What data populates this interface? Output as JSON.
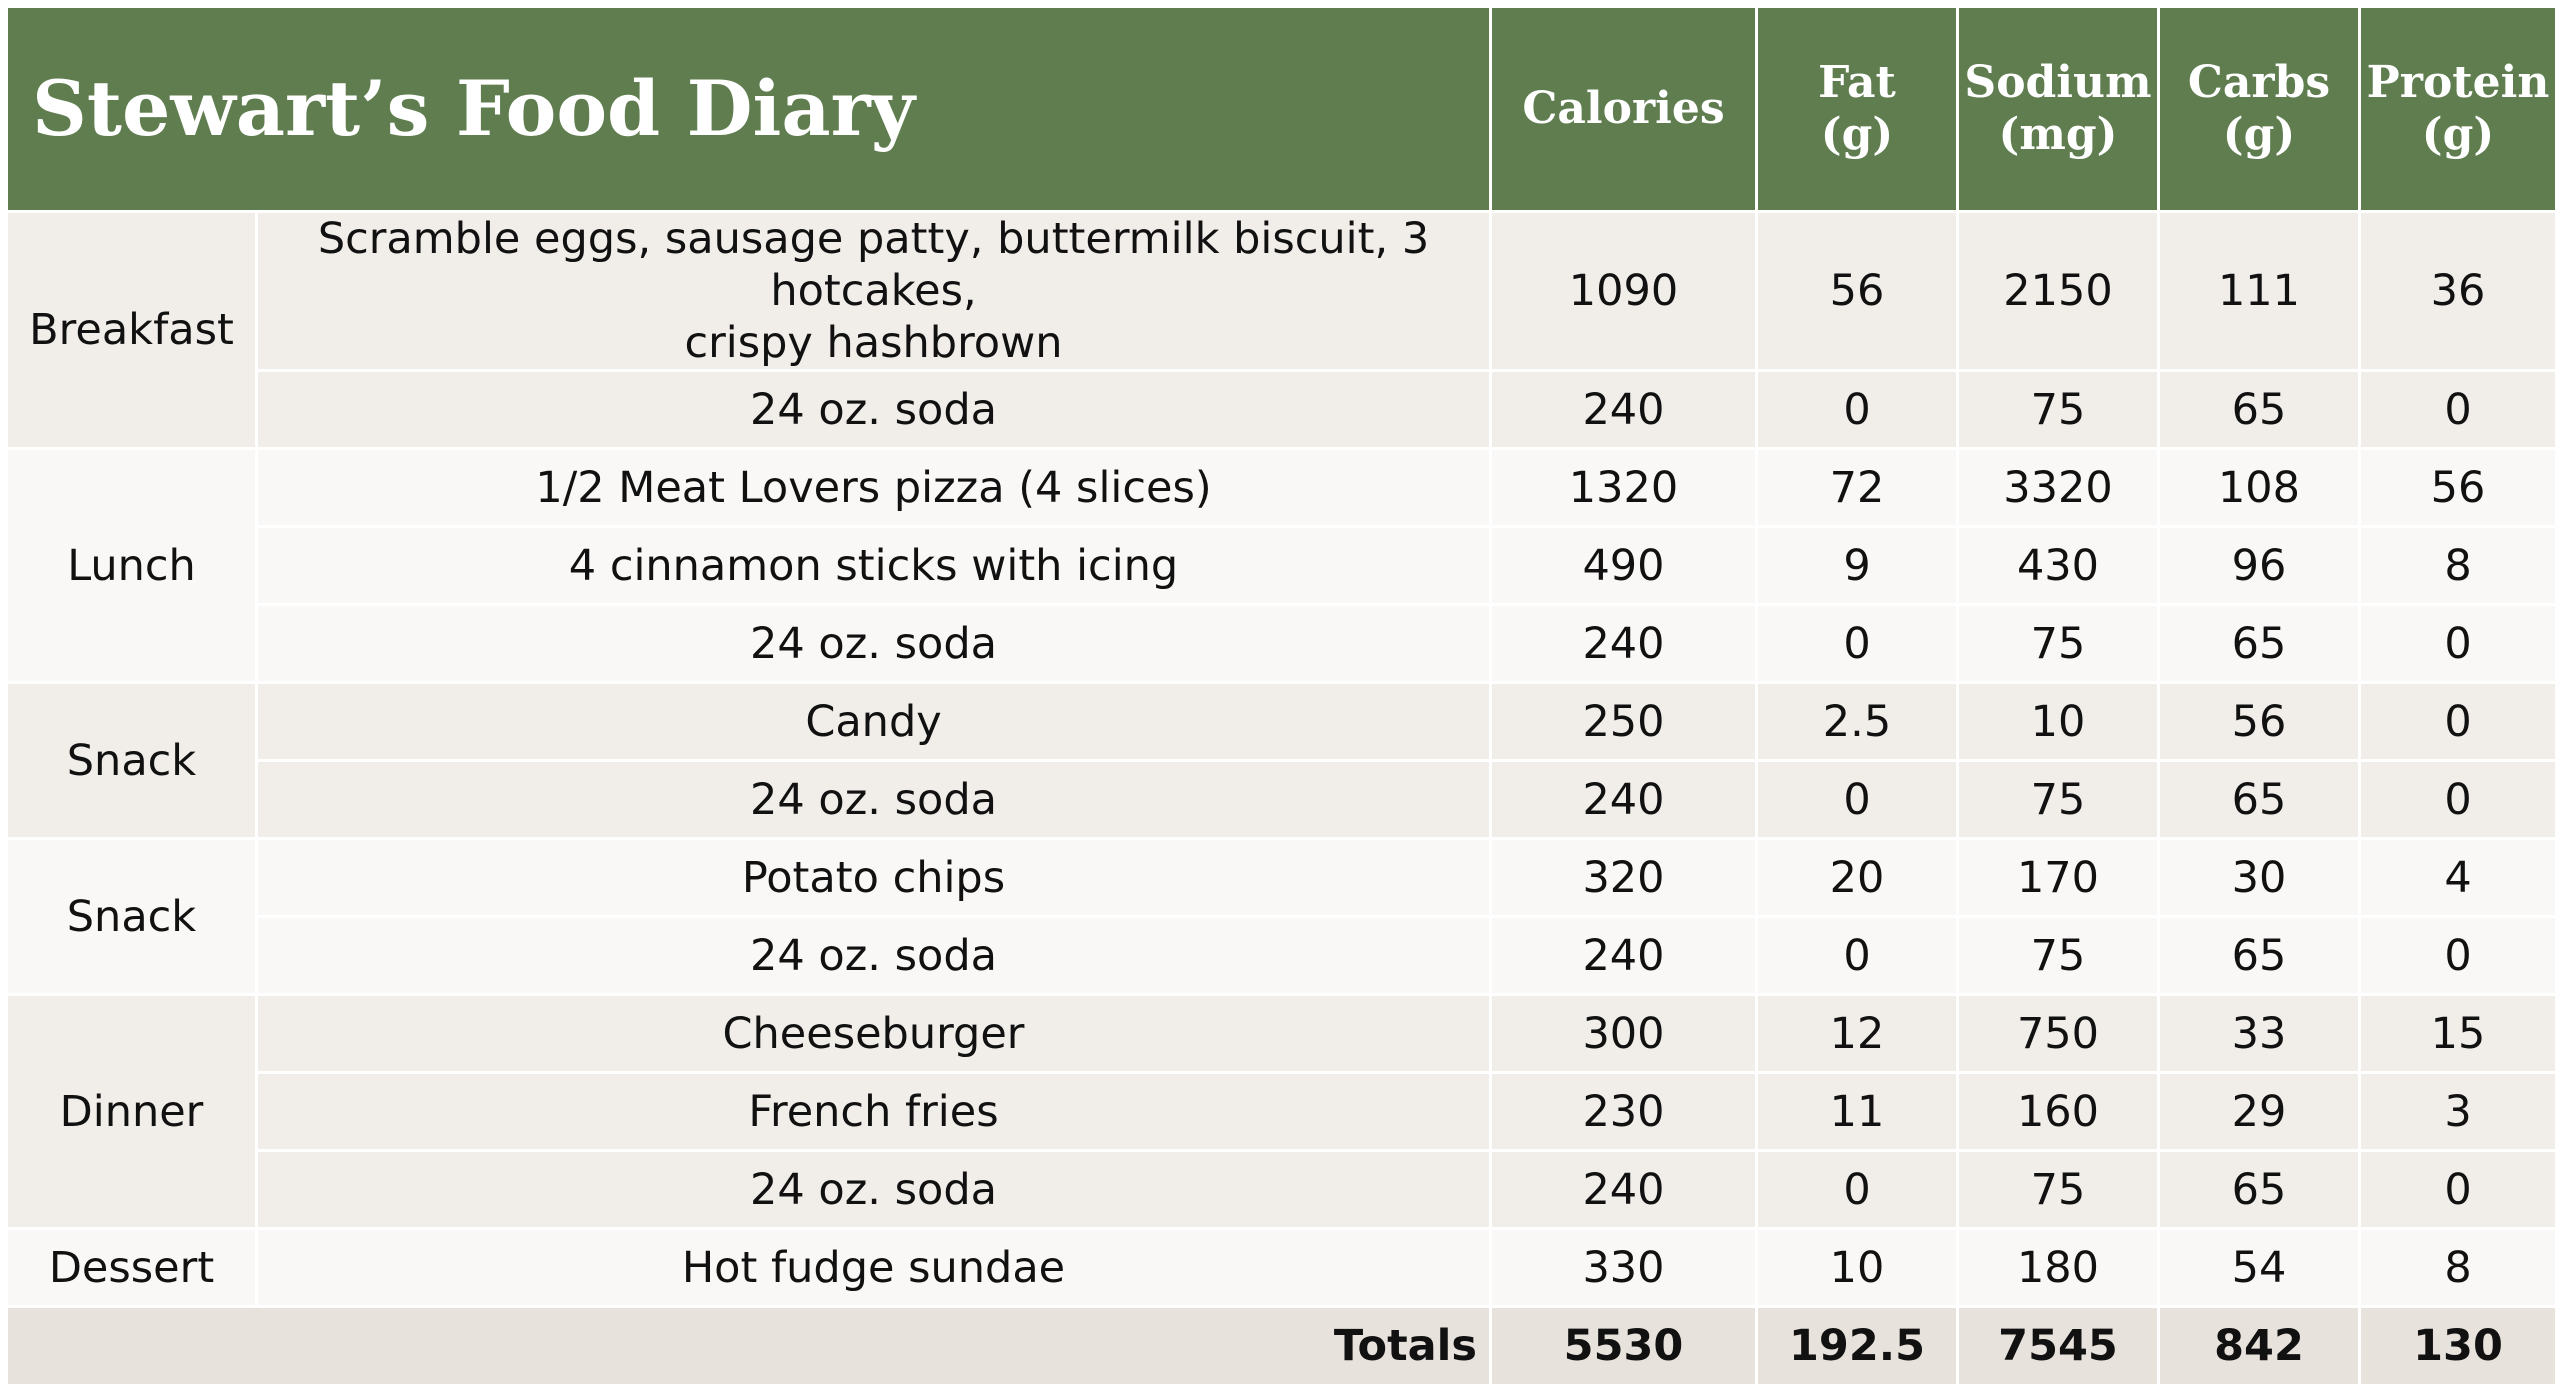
{
  "title": "Stewart’s Food Diary",
  "columns": {
    "calories": "Calories",
    "fat": [
      "Fat",
      "(g)"
    ],
    "sodium": [
      "Sodium",
      "(mg)"
    ],
    "carbs": [
      "Carbs",
      "(g)"
    ],
    "protein": [
      "Protein",
      "(g)"
    ]
  },
  "meals": [
    {
      "name": "Breakfast",
      "items": [
        {
          "item": [
            "Scramble eggs, sausage patty, buttermilk biscuit, 3 hotcakes,",
            "crispy hashbrown"
          ],
          "calories": "1090",
          "fat": "56",
          "sodium": "2150",
          "carbs": "111",
          "protein": "36"
        },
        {
          "item": [
            "24 oz. soda"
          ],
          "calories": "240",
          "fat": "0",
          "sodium": "75",
          "carbs": "65",
          "protein": "0"
        }
      ]
    },
    {
      "name": "Lunch",
      "items": [
        {
          "item": [
            "1/2 Meat Lovers pizza (4 slices)"
          ],
          "calories": "1320",
          "fat": "72",
          "sodium": "3320",
          "carbs": "108",
          "protein": "56"
        },
        {
          "item": [
            "4 cinnamon sticks with icing"
          ],
          "calories": "490",
          "fat": "9",
          "sodium": "430",
          "carbs": "96",
          "protein": "8"
        },
        {
          "item": [
            "24 oz. soda"
          ],
          "calories": "240",
          "fat": "0",
          "sodium": "75",
          "carbs": "65",
          "protein": "0"
        }
      ]
    },
    {
      "name": "Snack",
      "items": [
        {
          "item": [
            "Candy"
          ],
          "calories": "250",
          "fat": "2.5",
          "sodium": "10",
          "carbs": "56",
          "protein": "0"
        },
        {
          "item": [
            "24 oz. soda"
          ],
          "calories": "240",
          "fat": "0",
          "sodium": "75",
          "carbs": "65",
          "protein": "0"
        }
      ]
    },
    {
      "name": "Snack",
      "items": [
        {
          "item": [
            "Potato chips"
          ],
          "calories": "320",
          "fat": "20",
          "sodium": "170",
          "carbs": "30",
          "protein": "4"
        },
        {
          "item": [
            "24 oz. soda"
          ],
          "calories": "240",
          "fat": "0",
          "sodium": "75",
          "carbs": "65",
          "protein": "0"
        }
      ]
    },
    {
      "name": "Dinner",
      "items": [
        {
          "item": [
            "Cheeseburger"
          ],
          "calories": "300",
          "fat": "12",
          "sodium": "750",
          "carbs": "33",
          "protein": "15"
        },
        {
          "item": [
            "French fries"
          ],
          "calories": "230",
          "fat": "11",
          "sodium": "160",
          "carbs": "29",
          "protein": "3"
        },
        {
          "item": [
            "24 oz. soda"
          ],
          "calories": "240",
          "fat": "0",
          "sodium": "75",
          "carbs": "65",
          "protein": "0"
        }
      ]
    },
    {
      "name": "Dessert",
      "items": [
        {
          "item": [
            "Hot fudge sundae"
          ],
          "calories": "330",
          "fat": "10",
          "sodium": "180",
          "carbs": "54",
          "protein": "8"
        }
      ]
    }
  ],
  "totals": {
    "label": "Totals",
    "calories": "5530",
    "fat": "192.5",
    "sodium": "7545",
    "carbs": "842",
    "protein": "130"
  },
  "colors": {
    "header_green": "#5f7d4f",
    "row_shade_a": "#f1ede9",
    "row_shade_b": "#faf8f6",
    "totals_row": "#e8e2dc"
  }
}
